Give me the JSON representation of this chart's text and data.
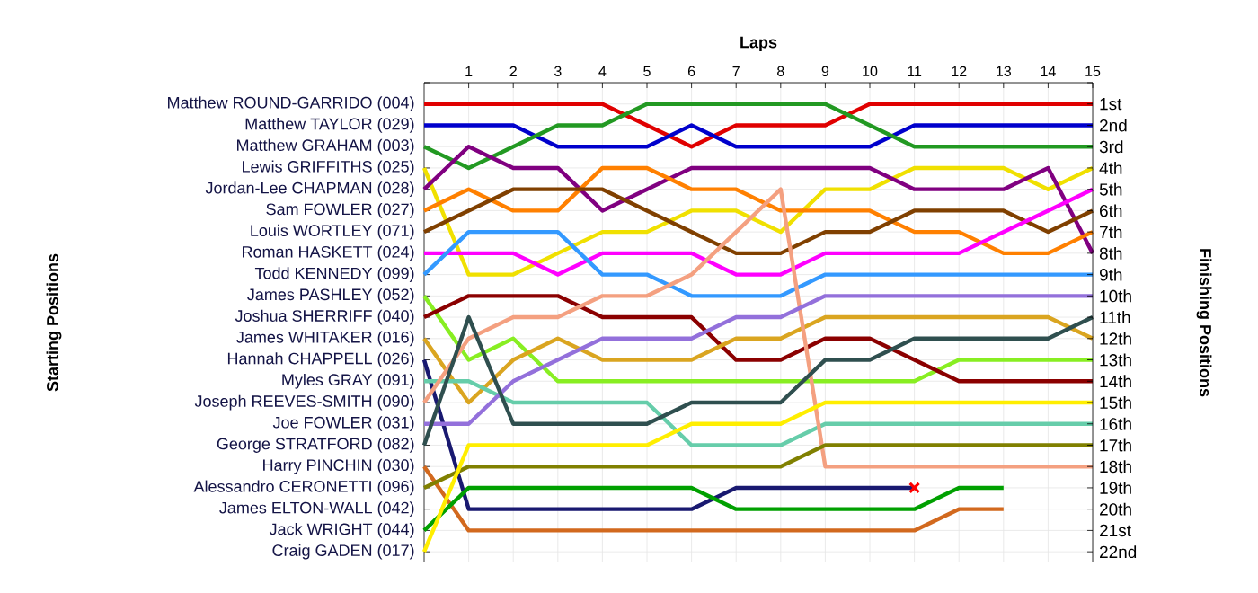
{
  "chart_data": {
    "type": "line",
    "xlabel": "Laps",
    "y2label": "Finishing Positions",
    "annotations": [
      "Starting Positions",
      "James ELTON-WALL (042)"
    ],
    "x": [
      0,
      1,
      2,
      3,
      4,
      5,
      6,
      7,
      8,
      9,
      10,
      11,
      12,
      13,
      14,
      15
    ],
    "xlim": [
      0,
      15
    ],
    "xticks": [
      1,
      2,
      3,
      4,
      5,
      6,
      7,
      8,
      9,
      10,
      11,
      12,
      13,
      14,
      15
    ],
    "ylim": [
      22.5,
      0
    ],
    "yticks": [
      {
        "value": 0,
        "label": null
      },
      {
        "value": 1,
        "label": "1st"
      },
      {
        "value": 2,
        "label": "2nd"
      },
      {
        "value": 3,
        "label": "3rd"
      },
      {
        "value": 4,
        "label": "4th"
      },
      {
        "value": 5,
        "label": "5th"
      },
      {
        "value": 6,
        "label": "6th"
      },
      {
        "value": 7,
        "label": "7th"
      },
      {
        "value": 8,
        "label": "8th"
      },
      {
        "value": 9,
        "label": "9th"
      },
      {
        "value": 10,
        "label": "10th"
      },
      {
        "value": 11,
        "label": "11th"
      },
      {
        "value": 12,
        "label": "12th"
      },
      {
        "value": 13,
        "label": "13th"
      },
      {
        "value": 14,
        "label": "14th"
      },
      {
        "value": 15,
        "label": "15th"
      },
      {
        "value": 16,
        "label": "16th"
      },
      {
        "value": 17,
        "label": "17th"
      },
      {
        "value": 18,
        "label": "18th"
      },
      {
        "value": 19,
        "label": "19th"
      },
      {
        "value": 20,
        "label": "20th"
      },
      {
        "value": 21,
        "label": "21st"
      },
      {
        "value": 22,
        "label": "22nd"
      }
    ],
    "grid": true,
    "marker": "none",
    "line_style": "solid",
    "series": [
      {
        "name": "Matthew ROUND-GARRIDO (004)",
        "color": "#e00000",
        "values": [
          1,
          1,
          1,
          1,
          1,
          2,
          3,
          2,
          2,
          2,
          1,
          1,
          1,
          1,
          1,
          1
        ]
      },
      {
        "name": "Matthew TAYLOR (029)",
        "color": "#0000cc",
        "values": [
          2,
          2,
          2,
          3,
          3,
          3,
          2,
          3,
          3,
          3,
          3,
          2,
          2,
          2,
          2,
          2
        ]
      },
      {
        "name": "Matthew GRAHAM (003)",
        "color": "#229922",
        "values": [
          3,
          4,
          3,
          2,
          2,
          1,
          1,
          1,
          1,
          1,
          2,
          3,
          3,
          3,
          3,
          3
        ]
      },
      {
        "name": "Lewis GRIFFITHS (025)",
        "color": "#f0e000",
        "values": [
          4,
          9,
          9,
          8,
          7,
          7,
          6,
          6,
          7,
          5,
          5,
          4,
          4,
          4,
          5,
          4
        ]
      },
      {
        "name": "Jordan-Lee CHAPMAN (028)",
        "color": "#800080",
        "values": [
          5,
          3,
          4,
          4,
          6,
          5,
          4,
          4,
          4,
          4,
          4,
          5,
          5,
          5,
          4,
          8
        ]
      },
      {
        "name": "Sam FOWLER (027)",
        "color": "#ff8000",
        "values": [
          6,
          5,
          6,
          6,
          4,
          4,
          5,
          5,
          6,
          6,
          6,
          7,
          7,
          8,
          8,
          7
        ]
      },
      {
        "name": "Louis WORTLEY (071)",
        "color": "#804000",
        "values": [
          7,
          6,
          5,
          5,
          5,
          6,
          7,
          8,
          8,
          7,
          7,
          6,
          6,
          6,
          7,
          6
        ]
      },
      {
        "name": "Roman HASKETT (024)",
        "color": "#ff00ff",
        "values": [
          8,
          8,
          8,
          9,
          8,
          8,
          8,
          9,
          9,
          8,
          8,
          8,
          8,
          7,
          6,
          5
        ]
      },
      {
        "name": "Todd KENNEDY (099)",
        "color": "#3399ff",
        "values": [
          9,
          7,
          7,
          7,
          9,
          9,
          10,
          10,
          10,
          9,
          9,
          9,
          9,
          9,
          9,
          9
        ]
      },
      {
        "name": "James PASHLEY (052)",
        "color": "#88ee22",
        "values": [
          10,
          13,
          12,
          14,
          14,
          14,
          14,
          14,
          14,
          14,
          14,
          14,
          13,
          13,
          13,
          13
        ]
      },
      {
        "name": "Joshua SHERRIFF (040)",
        "color": "#8b0000",
        "values": [
          11,
          10,
          10,
          10,
          11,
          11,
          11,
          13,
          13,
          12,
          12,
          13,
          14,
          14,
          14,
          14
        ]
      },
      {
        "name": "James WHITAKER (016)",
        "color": "#daa520",
        "values": [
          12,
          15,
          13,
          12,
          13,
          13,
          13,
          12,
          12,
          11,
          11,
          11,
          11,
          11,
          11,
          12
        ]
      },
      {
        "name": "Hannah CHAPPELL (026)",
        "color": "#191970",
        "values": [
          13,
          20,
          20,
          20,
          20,
          20,
          20,
          19,
          19,
          19,
          19,
          19,
          null,
          null,
          null,
          null
        ]
      },
      {
        "name": "Myles GRAY (091)",
        "color": "#66cdaa",
        "values": [
          14,
          14,
          15,
          15,
          15,
          15,
          17,
          17,
          17,
          16,
          16,
          16,
          16,
          16,
          16,
          16
        ]
      },
      {
        "name": "Joseph REEVES-SMITH (090)",
        "color": "#f4a080",
        "values": [
          15,
          12,
          11,
          11,
          10,
          10,
          9,
          7,
          5,
          18,
          18,
          18,
          18,
          18,
          18,
          18
        ]
      },
      {
        "name": "Joe FOWLER (031)",
        "color": "#9370db",
        "values": [
          16,
          16,
          14,
          13,
          12,
          12,
          12,
          11,
          11,
          10,
          10,
          10,
          10,
          10,
          10,
          10
        ]
      },
      {
        "name": "George STRATFORD (082)",
        "color": "#2f4f4f",
        "values": [
          17,
          11,
          16,
          16,
          16,
          16,
          15,
          15,
          15,
          13,
          13,
          12,
          12,
          12,
          12,
          11
        ]
      },
      {
        "name": "Harry PINCHIN (030)",
        "color": "#d2691e",
        "values": [
          18,
          21,
          21,
          21,
          21,
          21,
          21,
          21,
          21,
          21,
          21,
          21,
          20,
          20,
          null,
          null
        ]
      },
      {
        "name": "Alessandro CERONETTI (096)",
        "color": "#808000",
        "values": [
          19,
          18,
          18,
          18,
          18,
          18,
          18,
          18,
          18,
          17,
          17,
          17,
          17,
          17,
          17,
          17
        ]
      },
      {
        "name": "Jack WRIGHT (044)",
        "color": "#00a000",
        "values": [
          21,
          19,
          19,
          19,
          19,
          19,
          19,
          20,
          20,
          20,
          20,
          20,
          19,
          19,
          null,
          null
        ]
      },
      {
        "name": "Craig GADEN (017)",
        "color": "#ffee00",
        "values": [
          22,
          17,
          17,
          17,
          17,
          17,
          16,
          16,
          16,
          15,
          15,
          15,
          15,
          15,
          15,
          15
        ]
      },
      {
        "type": "scatter",
        "marker": "cross",
        "color": "#ff0000",
        "x": [
          11
        ],
        "values": [
          19
        ]
      }
    ]
  }
}
